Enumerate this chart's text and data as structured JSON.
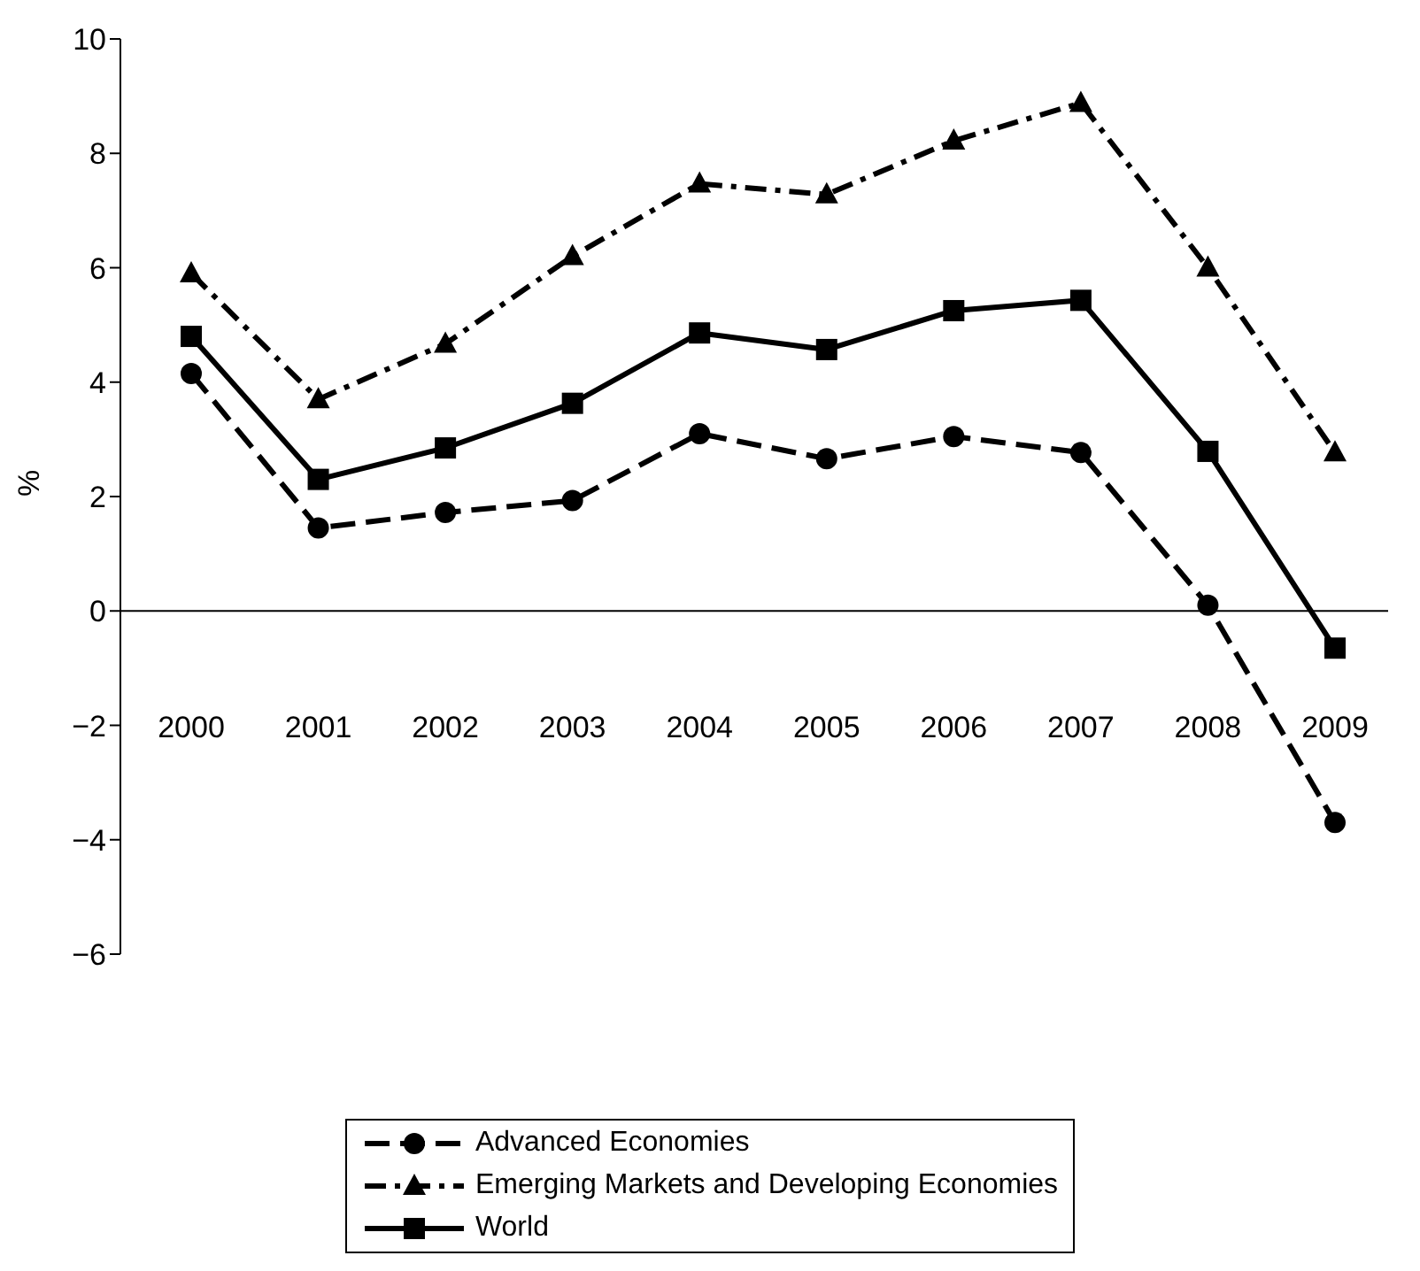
{
  "chart_data": {
    "type": "line",
    "ylabel": "%",
    "categories": [
      "2000",
      "2001",
      "2002",
      "2003",
      "2004",
      "2005",
      "2006",
      "2007",
      "2008",
      "2009"
    ],
    "series": [
      {
        "name": "Advanced Economies",
        "color": "#000000",
        "marker": "circle",
        "line_style": "dashed",
        "values": [
          4.15,
          1.45,
          1.72,
          1.93,
          3.1,
          2.66,
          3.05,
          2.77,
          0.1,
          -3.7
        ]
      },
      {
        "name": "Emerging Markets and Developing Economies",
        "color": "#000000",
        "marker": "triangle",
        "line_style": "dotted",
        "values": [
          5.9,
          3.7,
          4.67,
          6.2,
          7.47,
          7.28,
          8.22,
          8.88,
          6.0,
          2.77
        ]
      },
      {
        "name": "World",
        "color": "#000000",
        "marker": "square",
        "line_style": "solid",
        "values": [
          4.8,
          2.3,
          2.85,
          3.63,
          4.86,
          4.57,
          5.25,
          5.43,
          2.79,
          -0.65
        ]
      }
    ],
    "ylim": [
      -6,
      10
    ],
    "yticks": [
      {
        "value": -6,
        "label": "−6"
      },
      {
        "value": -4,
        "label": "−4"
      },
      {
        "value": -2,
        "label": "−2"
      },
      0,
      2,
      4,
      6,
      8,
      10
    ],
    "legend": "bottom"
  }
}
